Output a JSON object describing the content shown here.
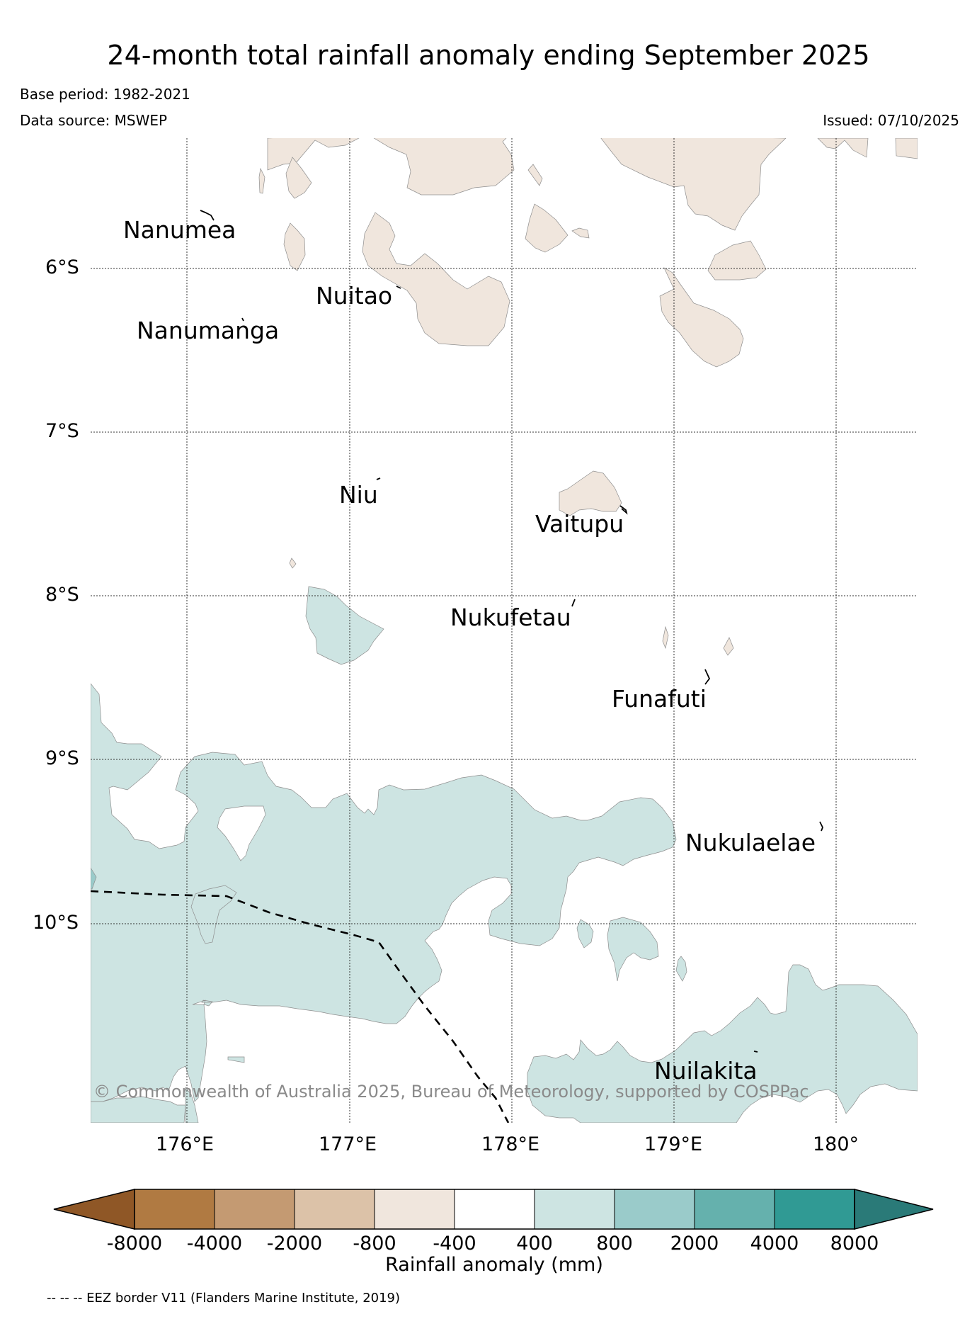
{
  "title": "24-month total rainfall anomaly ending September 2025",
  "base_period": "Base period: 1982-2021",
  "data_source": "Data source: MSWEP",
  "issued": "Issued: 07/10/2025",
  "copyright": "© Commonwealth of Australia 2025, Bureau of Meteorology, supported by COSPPac",
  "footnote": "-- -- -- EEZ border V11 (Flanders Marine Institute, 2019)",
  "axes": {
    "lon_labels": [
      "176°E",
      "177°E",
      "178°E",
      "179°E",
      "180°"
    ],
    "lat_labels": [
      "6°S",
      "7°S",
      "8°S",
      "9°S",
      "10°S"
    ]
  },
  "places": [
    {
      "name": "Nanumea"
    },
    {
      "name": "Nuitao"
    },
    {
      "name": "Nanumanga"
    },
    {
      "name": "Niu"
    },
    {
      "name": "Vaitupu"
    },
    {
      "name": "Nukufetau"
    },
    {
      "name": "Funafuti"
    },
    {
      "name": "Nukulaelae"
    },
    {
      "name": "Nuilakita"
    }
  ],
  "colorbar": {
    "title": "Rainfall anomaly (mm)",
    "ticks": [
      "-8000",
      "-4000",
      "-2000",
      "-800",
      "-400",
      "400",
      "800",
      "2000",
      "4000",
      "8000"
    ],
    "colors": [
      "#8f5726",
      "#b07a42",
      "#c49a72",
      "#dcc2a8",
      "#f0e6dd",
      "#ffffff",
      "#cde4e2",
      "#9acbca",
      "#65b1ad",
      "#309a94",
      "#2a7a78"
    ],
    "extend": "both"
  },
  "colors": {
    "dry": "#f0e6dd",
    "wet": "#cde4e2",
    "wetter": "#9acbca",
    "outline": "#8e8e8e"
  }
}
